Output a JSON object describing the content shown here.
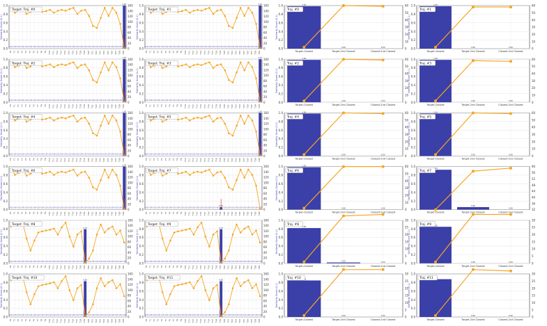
{
  "chart_data": {
    "type": "bar",
    "left_panels": [
      {
        "title": "Target: Traj. #0",
        "highlight_index": 29,
        "highlight_value": 1.0,
        "highlight_label": "1.00",
        "line": [
          1.0,
          0.88,
          0.92,
          1.0,
          0.85,
          0.9,
          0.95,
          0.96,
          0.9,
          0.92,
          0.95,
          0.88,
          0.93,
          0.95,
          0.93,
          0.97,
          1.0,
          0.85,
          0.93,
          0.95,
          0.8,
          0.55,
          0.5,
          0.75,
          1.0,
          0.8,
          1.0,
          0.88,
          0.6,
          0.0
        ]
      },
      {
        "title": "Target: Traj. #1",
        "highlight_index": 29,
        "highlight_value": 1.0,
        "highlight_label": "1.00",
        "line": [
          1.0,
          0.88,
          0.92,
          1.0,
          0.85,
          0.9,
          0.95,
          0.96,
          0.9,
          0.92,
          0.95,
          0.88,
          0.93,
          0.95,
          0.93,
          0.97,
          1.0,
          0.85,
          0.93,
          0.95,
          0.8,
          0.55,
          0.5,
          0.75,
          1.0,
          0.8,
          1.0,
          0.88,
          0.6,
          0.0
        ]
      },
      {
        "title": "Target: Traj. #2",
        "highlight_index": 29,
        "highlight_value": 1.0,
        "highlight_label": "1.00",
        "line": [
          1.0,
          0.86,
          0.9,
          0.98,
          0.84,
          0.88,
          0.93,
          0.94,
          0.88,
          0.9,
          0.93,
          0.86,
          0.91,
          0.93,
          0.91,
          0.95,
          0.98,
          0.84,
          0.91,
          0.93,
          0.78,
          0.54,
          0.48,
          0.73,
          0.98,
          0.78,
          0.98,
          0.86,
          0.58,
          0.0
        ]
      },
      {
        "title": "Target: Traj. #3",
        "highlight_index": 29,
        "highlight_value": 1.0,
        "highlight_label": "1.00",
        "line": [
          1.0,
          0.86,
          0.9,
          0.98,
          0.84,
          0.88,
          0.93,
          0.94,
          0.88,
          0.9,
          0.93,
          0.86,
          0.91,
          0.93,
          0.91,
          0.95,
          0.98,
          0.84,
          0.91,
          0.93,
          0.78,
          0.54,
          0.48,
          0.73,
          0.98,
          0.78,
          0.98,
          0.86,
          0.58,
          0.0
        ]
      },
      {
        "title": "Target: Traj. #4",
        "highlight_index": 29,
        "highlight_value": 1.0,
        "highlight_label": "1.00",
        "line": [
          1.0,
          0.87,
          0.91,
          0.99,
          0.84,
          0.89,
          0.94,
          0.95,
          0.89,
          0.91,
          0.94,
          0.87,
          0.92,
          0.94,
          0.92,
          0.96,
          0.99,
          0.84,
          0.92,
          0.94,
          0.79,
          0.55,
          0.49,
          0.74,
          0.99,
          0.79,
          0.99,
          0.87,
          0.59,
          0.0
        ]
      },
      {
        "title": "Target: Traj. #5",
        "highlight_index": 29,
        "highlight_value": 1.0,
        "highlight_label": "1.00",
        "line": [
          1.0,
          0.87,
          0.91,
          0.99,
          0.84,
          0.89,
          0.94,
          0.95,
          0.89,
          0.91,
          0.94,
          0.87,
          0.92,
          0.94,
          0.92,
          0.96,
          0.99,
          0.84,
          0.92,
          0.94,
          0.79,
          0.55,
          0.49,
          0.74,
          0.99,
          0.79,
          0.99,
          0.87,
          0.59,
          0.0
        ]
      },
      {
        "title": "Target: Traj. #6",
        "highlight_index": 29,
        "highlight_value": 1.0,
        "highlight_label": "1.00",
        "line": [
          1.0,
          0.85,
          0.9,
          0.98,
          0.83,
          0.88,
          0.93,
          0.94,
          0.88,
          0.9,
          0.93,
          0.85,
          0.91,
          0.93,
          0.91,
          0.95,
          0.98,
          0.83,
          0.91,
          0.93,
          0.78,
          0.54,
          0.48,
          0.72,
          0.98,
          0.78,
          0.98,
          0.85,
          0.58,
          0.0
        ]
      },
      {
        "title": "Target: Traj. #7",
        "highlight_index": 19,
        "highlight_value": 0.06,
        "highlight_label": "0.06",
        "line": [
          1.0,
          0.85,
          0.9,
          0.98,
          0.83,
          0.88,
          0.93,
          0.94,
          0.88,
          0.9,
          0.93,
          0.85,
          0.91,
          0.93,
          0.91,
          0.95,
          0.98,
          0.83,
          0.91,
          0.93,
          0.78,
          0.54,
          0.48,
          0.72,
          0.98,
          0.78,
          0.98,
          0.85,
          0.58,
          0.0
        ]
      },
      {
        "title": "Target: Traj. #8",
        "highlight_index": 19,
        "highlight_value": 0.79,
        "highlight_label": "0.79",
        "line": [
          0.9,
          0.95,
          0.92,
          1.0,
          0.6,
          0.3,
          0.55,
          0.75,
          0.78,
          0.8,
          0.82,
          0.85,
          0.7,
          0.88,
          1.0,
          0.65,
          0.4,
          0.7,
          0.78,
          0.0,
          0.1,
          0.3,
          0.7,
          0.95,
          0.75,
          0.85,
          0.9,
          0.7,
          0.8,
          0.5
        ]
      },
      {
        "title": "Target: Traj. #9",
        "highlight_index": 19,
        "highlight_value": 0.79,
        "highlight_label": "0.79",
        "line": [
          0.9,
          0.95,
          0.92,
          1.0,
          0.6,
          0.3,
          0.55,
          0.75,
          0.78,
          0.8,
          0.82,
          0.85,
          0.7,
          0.88,
          1.0,
          0.65,
          0.4,
          0.7,
          0.78,
          0.0,
          0.1,
          0.3,
          0.7,
          0.95,
          0.75,
          0.85,
          0.9,
          0.7,
          0.8,
          0.5
        ]
      },
      {
        "title": "Target: Traj. #10",
        "highlight_index": 19,
        "highlight_value": 0.83,
        "highlight_label": "0.83",
        "line": [
          0.9,
          0.95,
          0.92,
          1.0,
          0.6,
          0.3,
          0.55,
          0.75,
          0.78,
          0.8,
          0.82,
          0.85,
          0.7,
          0.88,
          1.0,
          0.65,
          0.4,
          0.7,
          0.78,
          0.0,
          0.1,
          0.3,
          0.7,
          0.95,
          0.75,
          0.85,
          0.9,
          0.7,
          0.8,
          0.5
        ]
      },
      {
        "title": "Target: Traj. #11",
        "highlight_index": 19,
        "highlight_value": 0.83,
        "highlight_label": "0.83",
        "line": [
          0.9,
          0.95,
          0.92,
          1.0,
          0.6,
          0.3,
          0.55,
          0.75,
          0.78,
          0.8,
          0.82,
          0.85,
          0.7,
          0.88,
          1.0,
          0.65,
          0.4,
          0.7,
          0.78,
          0.0,
          0.1,
          0.3,
          0.7,
          0.95,
          0.75,
          0.85,
          0.9,
          0.7,
          0.8,
          0.5
        ]
      }
    ],
    "left_y_ticks": [
      "0.0",
      "0.2",
      "0.4",
      "0.6",
      "0.8",
      "1.0"
    ],
    "left_y2_ticks": [
      "0",
      "20",
      "40",
      "60",
      "80",
      "100",
      "120",
      "140",
      "160"
    ],
    "left_y_label": "Similarity Score (0-1)",
    "left_x_labels": [
      "T0",
      "T1",
      "T2",
      "T3",
      "T4",
      "T5",
      "T6",
      "T7",
      "T8",
      "T9",
      "T10",
      "T11",
      "T12",
      "T13",
      "T14",
      "T15",
      "T16",
      "T17",
      "T18",
      "T19",
      "T20",
      "T21",
      "T22",
      "T23",
      "T24",
      "T25",
      "T26",
      "T27",
      "T28",
      "T29"
    ],
    "right_categories": [
      "Target-Closest",
      "Target-2nd Closest",
      "Closest-2nd Closest"
    ],
    "right_panels": [
      {
        "title": "Traj. #0",
        "bars": [
          1.0,
          0.0,
          0.0
        ],
        "bar_labels": [
          "1.00",
          "0.00",
          "0.00"
        ],
        "line": [
          2,
          60,
          59
        ],
        "y2_ticks": [
          "0",
          "10",
          "20",
          "30",
          "40",
          "50",
          "60"
        ]
      },
      {
        "title": "Traj. #1",
        "bars": [
          1.0,
          0.0,
          0.0
        ],
        "bar_labels": [
          "1.00",
          "0.00",
          "0.00"
        ],
        "line": [
          2,
          58,
          58
        ],
        "y2_ticks": [
          "0",
          "10",
          "20",
          "30",
          "40",
          "50",
          "60"
        ]
      },
      {
        "title": "Traj. #2",
        "bars": [
          1.0,
          0.0,
          0.0
        ],
        "bar_labels": [
          "1.00",
          "0.00",
          "0.00"
        ],
        "line": [
          2,
          60,
          59
        ],
        "y2_ticks": [
          "0",
          "10",
          "20",
          "30",
          "40",
          "50",
          "60"
        ]
      },
      {
        "title": "Traj. #3",
        "bars": [
          1.0,
          0.0,
          0.0
        ],
        "bar_labels": [
          "1.00",
          "0.00",
          "0.00"
        ],
        "line": [
          2,
          58,
          57
        ],
        "y2_ticks": [
          "0",
          "10",
          "20",
          "30",
          "40",
          "50",
          "60"
        ]
      },
      {
        "title": "Traj. #4",
        "bars": [
          1.0,
          0.0,
          0.0
        ],
        "bar_labels": [
          "1.00",
          "0.00",
          "0.00"
        ],
        "line": [
          2,
          60,
          59
        ],
        "y2_ticks": [
          "0",
          "10",
          "20",
          "30",
          "40",
          "50",
          "60"
        ]
      },
      {
        "title": "Traj. #5",
        "bars": [
          1.0,
          0.0,
          0.0
        ],
        "bar_labels": [
          "1.00",
          "0.00",
          "0.00"
        ],
        "line": [
          2,
          60,
          59
        ],
        "y2_ticks": [
          "0",
          "10",
          "20",
          "30",
          "40",
          "50",
          "60"
        ]
      },
      {
        "title": "Traj. #6",
        "bars": [
          1.0,
          0.0,
          0.0
        ],
        "bar_labels": [
          "1.00",
          "0.00",
          "0.00"
        ],
        "line": [
          2,
          60,
          60
        ],
        "y2_ticks": [
          "0",
          "10",
          "20",
          "30",
          "40",
          "50",
          "60"
        ]
      },
      {
        "title": "Traj. #7",
        "bars": [
          0.94,
          0.06,
          0.0
        ],
        "bar_labels": [
          "0.94",
          "0.06",
          "0.00"
        ],
        "line": [
          32,
          57,
          59
        ],
        "y2_ticks": [
          "32",
          "36",
          "40",
          "44",
          "48",
          "52",
          "56",
          "60"
        ]
      },
      {
        "title": "Traj. #8",
        "bars": [
          0.83,
          0.02,
          0.0
        ],
        "bar_labels": [
          "0.83",
          "0.02",
          "0.00"
        ],
        "line": [
          1,
          33,
          34
        ],
        "y2_ticks": [
          "0",
          "5",
          "10",
          "15",
          "20",
          "25",
          "30"
        ]
      },
      {
        "title": "Traj. #9",
        "bars": [
          0.86,
          0.0,
          0.0
        ],
        "bar_labels": [
          "0.86",
          "0.00",
          "0.00"
        ],
        "line": [
          1,
          34,
          34
        ],
        "y2_ticks": [
          "0",
          "5",
          "10",
          "15",
          "20",
          "25",
          "30"
        ]
      },
      {
        "title": "Traj. #10",
        "bars": [
          0.86,
          0.0,
          0.0
        ],
        "bar_labels": [
          "0.86",
          "0.00",
          "0.00"
        ],
        "line": [
          1,
          33,
          33
        ],
        "y2_ticks": [
          "0",
          "5",
          "10",
          "15",
          "20",
          "25",
          "30"
        ]
      },
      {
        "title": "Traj. #11",
        "bars": [
          0.89,
          0.0,
          0.0
        ],
        "bar_labels": [
          "0.89",
          "0.00",
          "0.00"
        ],
        "line": [
          1,
          33,
          32
        ],
        "y2_ticks": [
          "0",
          "5",
          "10",
          "15",
          "20",
          "25",
          "30"
        ]
      }
    ],
    "right_y_ticks": [
      "0.0",
      "0.2",
      "0.4",
      "0.6",
      "0.8",
      "1.0"
    ],
    "right_y_label": "Similarity Score (0-1)",
    "colors": {
      "bar": "#3b3fa8",
      "line": "#f5a623",
      "grid": "#e4e4e4",
      "highlight_line": "#e63b2e",
      "axis": "#333333"
    },
    "grid": true
  }
}
